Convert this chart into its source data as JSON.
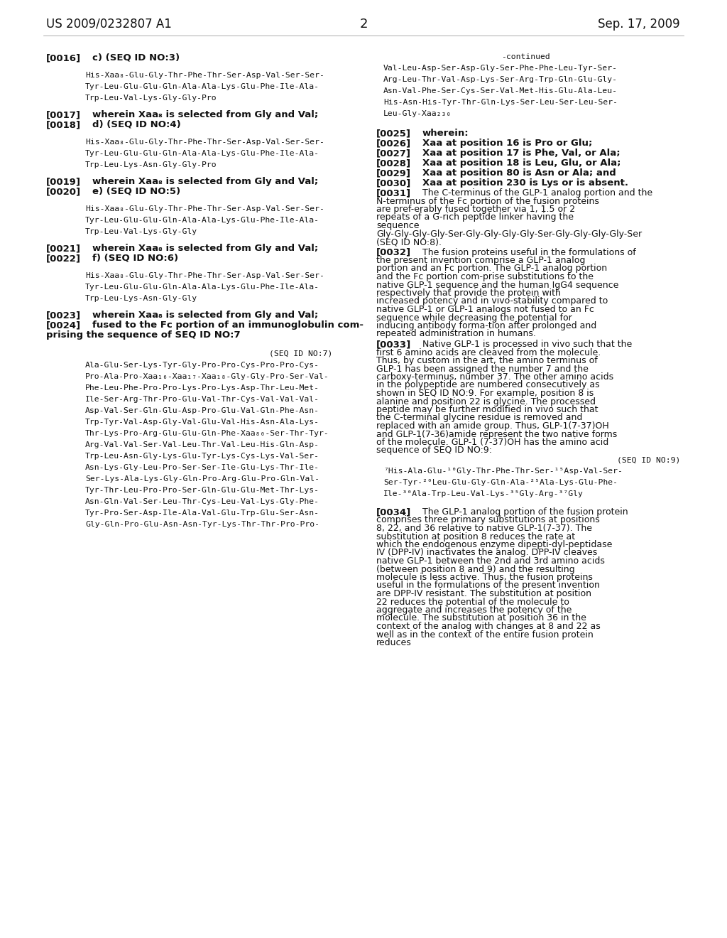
{
  "background_color": "#ffffff",
  "header_left": "US 2009/0232807 A1",
  "header_right": "Sep. 17, 2009",
  "page_number": "2",
  "mono_seq1": [
    "His-Xaa₈-Glu-Gly-Thr-Phe-Thr-Ser-Asp-Val-Ser-Ser-",
    "Tyr-Leu-Glu-Glu-Gln-Ala-Ala-Lys-Glu-Phe-Ile-Ala-",
    "Trp-Leu-Val-Lys-Gly-Gly-Pro"
  ],
  "mono_seq2": [
    "His-Xaa₈-Glu-Gly-Thr-Phe-Thr-Ser-Asp-Val-Ser-Ser-",
    "Tyr-Leu-Glu-Glu-Gln-Ala-Ala-Lys-Glu-Phe-Ile-Ala-",
    "Trp-Leu-Lys-Asn-Gly-Gly-Pro"
  ],
  "mono_seq3": [
    "His-Xaa₈-Glu-Gly-Thr-Phe-Thr-Ser-Asp-Val-Ser-Ser-",
    "Tyr-Leu-Glu-Glu-Gln-Ala-Ala-Lys-Glu-Phe-Ile-Ala-",
    "Trp-Leu-Val-Lys-Gly-Gly"
  ],
  "mono_seq4": [
    "His-Xaa₈-Glu-Gly-Thr-Phe-Thr-Ser-Asp-Val-Ser-Ser-",
    "Tyr-Leu-Glu-Glu-Gln-Ala-Ala-Lys-Glu-Phe-Ile-Ala-",
    "Trp-Leu-Lys-Asn-Gly-Gly"
  ],
  "seq7_label": "(SEQ ID NO:7)",
  "seq7_lines": [
    "Ala-Glu-Ser-Lys-Tyr-Gly-Pro-Pro-Cys-Pro-Pro-Cys-",
    "Pro-Ala-Pro-Xaa₁₆-Xaa₁₇-Xaa₁₈-Gly-Gly-Pro-Ser-Val-",
    "Phe-Leu-Phe-Pro-Pro-Lys-Pro-Lys-Asp-Thr-Leu-Met-",
    "Ile-Ser-Arg-Thr-Pro-Glu-Val-Thr-Cys-Val-Val-Val-",
    "Asp-Val-Ser-Gln-Glu-Asp-Pro-Glu-Val-Gln-Phe-Asn-",
    "Trp-Tyr-Val-Asp-Gly-Val-Glu-Val-His-Asn-Ala-Lys-",
    "Thr-Lys-Pro-Arg-Glu-Glu-Gln-Phe-Xaa₈₀-Ser-Thr-Tyr-",
    "Arg-Val-Val-Ser-Val-Leu-Thr-Val-Leu-His-Gln-Asp-",
    "Trp-Leu-Asn-Gly-Lys-Glu-Tyr-Lys-Cys-Lys-Val-Ser-",
    "Asn-Lys-Gly-Leu-Pro-Ser-Ser-Ile-Glu-Lys-Thr-Ile-",
    "Ser-Lys-Ala-Lys-Gly-Gln-Pro-Arg-Glu-Pro-Gln-Val-",
    "Tyr-Thr-Leu-Pro-Pro-Ser-Gln-Glu-Glu-Met-Thr-Lys-",
    "Asn-Gln-Val-Ser-Leu-Thr-Cys-Leu-Val-Lys-Gly-Phe-",
    "Tyr-Pro-Ser-Asp-Ile-Ala-Val-Glu-Trp-Glu-Ser-Asn-",
    "Gly-Gln-Pro-Glu-Asn-Asn-Tyr-Lys-Thr-Thr-Pro-Pro-"
  ],
  "continued_label": "-continued",
  "continued_lines": [
    "Val-Leu-Asp-Ser-Asp-Gly-Ser-Phe-Phe-Leu-Tyr-Ser-",
    "Arg-Leu-Thr-Val-Asp-Lys-Ser-Arg-Trp-Gln-Glu-Gly-",
    "Asn-Val-Phe-Ser-Cys-Ser-Val-Met-His-Glu-Ala-Leu-",
    "His-Asn-His-Tyr-Thr-Gln-Lys-Ser-Leu-Ser-Leu-Ser-",
    "Leu-Gly-Xaa₂₃₀"
  ],
  "seq9_label": "(SEQ ID NO:9)",
  "seq9_lines": [
    "⁷His-Ala-Glu-¹⁰Gly-Thr-Phe-Thr-Ser-¹⁵Asp-Val-Ser-",
    "Ser-Tyr-²⁰Leu-Glu-Gly-Gln-Ala-²⁵Ala-Lys-Glu-Phe-",
    "Ile-³⁰Ala-Trp-Leu-Val-Lys-³⁵Gly-Arg-³⁷Gly"
  ],
  "text0031": "The C-terminus of the GLP-1 analog portion and the N-terminus of the Fc portion of the fusion proteins are pref-erably fused together via 1, 1.5 or 2 repeats of a G-rich peptide linker having the sequence Gly-Gly-Gly-Gly-Ser-Gly-Gly-Gly-Gly-Ser-Gly-Gly-Gly-Gly-Ser (SEQ ID NO:8).",
  "text0032": "The fusion proteins useful in the formulations of the present invention comprise a GLP-1 analog portion and an Fc portion. The GLP-1 analog portion and the Fc portion com-prise substitutions to the native GLP-1 sequence and the human IgG4 sequence respectively that provide the protein with increased potency and in vivo-stability compared to native GLP-1 or GLP-1 analogs not fused to an Fc sequence while decreasing the potential for inducing antibody forma-tion after prolonged and repeated administration in humans.",
  "text0033": "Native GLP-1 is processed in vivo such that the first 6 amino acids are cleaved from the molecule. Thus, by custom in the art, the amino terminus of GLP-1 has been assigned the number 7 and the carboxy-terminus, number 37. The other amino acids in the polypeptide are numbered consecutively as shown in SEQ ID NO:9. For example, position 8 is alanine and position 22 is glycine. The processed peptide may be further modified in vivo such that the C-terminal glycine residue is removed and replaced with an amide group. Thus, GLP-1(7-37)OH and GLP-1(7-36)amide represent the two native forms of the molecule. GLP-1 (7-37)OH has the amino acid sequence of SEQ ID NO:9:",
  "text0034": "The GLP-1 analog portion of the fusion protein comprises three primary substitutions at positions 8, 22, and 36 relative to native GLP-1(7-37). The substitution at position 8 reduces the rate at which the endogenous enzyme dipepti-dyl-peptidase IV (DPP-IV) inactivates the analog. DPP-IV cleaves native GLP-1 between the 2nd and 3rd amino acids (between position 8 and 9) and the resulting molecule is less active. Thus, the fusion proteins useful in the formulations of the present invention are DPP-IV resistant. The substitution at position 22 reduces the potential of the molecule to aggregate and increases the potency of the molecule. The substitution at position 36 in the context of the analog with changes at 8 and 22 as well as in the context of the entire fusion protein reduces"
}
